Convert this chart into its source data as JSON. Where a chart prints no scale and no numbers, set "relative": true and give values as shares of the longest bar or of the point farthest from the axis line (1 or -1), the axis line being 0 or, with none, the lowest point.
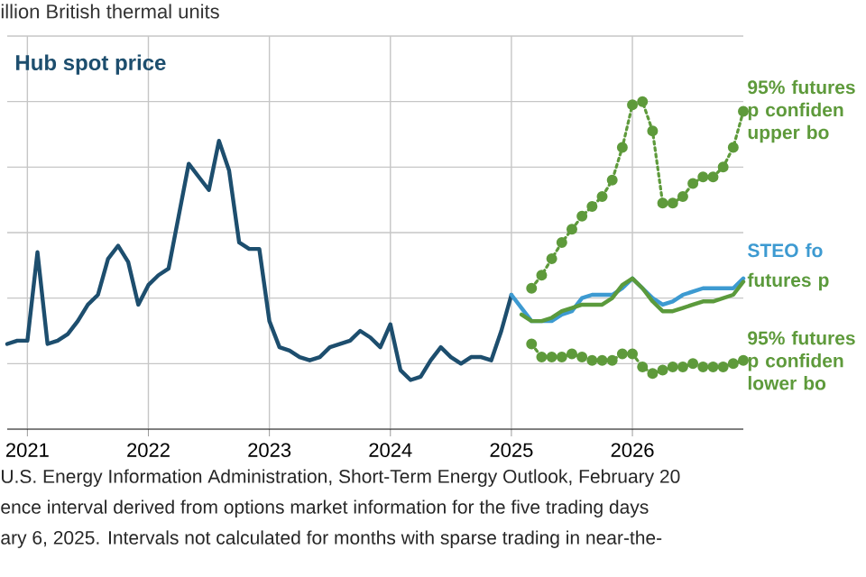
{
  "chart_data": {
    "type": "line",
    "ylabel": "illion British thermal units",
    "relative": true,
    "grid": true,
    "xlim": [
      "2020-11",
      "2026-12"
    ],
    "xticks": [
      {
        "value": "2021",
        "label": "2021"
      },
      {
        "value": "2022",
        "label": "2022"
      },
      {
        "value": "2023",
        "label": "2023"
      },
      {
        "value": "2024",
        "label": "2024"
      },
      {
        "value": "2025",
        "label": "2025"
      },
      {
        "value": "2026",
        "label": "2026"
      }
    ],
    "x": [
      "2020-11",
      "2020-12",
      "2021-01",
      "2021-02",
      "2021-03",
      "2021-04",
      "2021-05",
      "2021-06",
      "2021-07",
      "2021-08",
      "2021-09",
      "2021-10",
      "2021-11",
      "2021-12",
      "2022-01",
      "2022-02",
      "2022-03",
      "2022-04",
      "2022-05",
      "2022-06",
      "2022-07",
      "2022-08",
      "2022-09",
      "2022-10",
      "2022-11",
      "2022-12",
      "2023-01",
      "2023-02",
      "2023-03",
      "2023-04",
      "2023-05",
      "2023-06",
      "2023-07",
      "2023-08",
      "2023-09",
      "2023-10",
      "2023-11",
      "2023-12",
      "2024-01",
      "2024-02",
      "2024-03",
      "2024-04",
      "2024-05",
      "2024-06",
      "2024-07",
      "2024-08",
      "2024-09",
      "2024-10",
      "2024-11",
      "2024-12",
      "2025-01"
    ],
    "series": [
      {
        "name": "Hub spot price",
        "color": "#1d4e6e",
        "values": [
          0.26,
          0.27,
          0.27,
          0.54,
          0.26,
          0.27,
          0.29,
          0.33,
          0.38,
          0.41,
          0.52,
          0.56,
          0.51,
          0.38,
          0.44,
          0.47,
          0.49,
          0.65,
          0.81,
          0.77,
          0.73,
          0.88,
          0.79,
          0.57,
          0.55,
          0.55,
          0.33,
          0.25,
          0.24,
          0.22,
          0.21,
          0.22,
          0.25,
          0.26,
          0.27,
          0.3,
          0.28,
          0.25,
          0.32,
          0.18,
          0.15,
          0.16,
          0.21,
          0.25,
          0.22,
          0.2,
          0.22,
          0.22,
          0.21,
          0.3,
          0.41
        ]
      },
      {
        "name": "95% futures p confiden upper bo",
        "color": "#5e9a3b",
        "marker": "circle",
        "line_style": "dotted",
        "x": [
          "2025-03",
          "2025-04",
          "2025-05",
          "2025-06",
          "2025-07",
          "2025-08",
          "2025-09",
          "2025-10",
          "2025-11",
          "2025-12",
          "2026-01",
          "2026-02",
          "2026-03",
          "2026-04",
          "2026-05",
          "2026-06",
          "2026-07",
          "2026-08",
          "2026-09",
          "2026-10",
          "2026-11",
          "2026-12"
        ],
        "values": [
          0.43,
          0.47,
          0.52,
          0.57,
          0.61,
          0.65,
          0.68,
          0.71,
          0.76,
          0.86,
          0.99,
          1.0,
          0.91,
          0.69,
          0.69,
          0.71,
          0.75,
          0.77,
          0.77,
          0.8,
          0.86,
          0.97
        ]
      },
      {
        "name": "STEO fo",
        "color": "#3d9ad1",
        "x": [
          "2025-01",
          "2025-02",
          "2025-03",
          "2025-04",
          "2025-05",
          "2025-06",
          "2025-07",
          "2025-08",
          "2025-09",
          "2025-10",
          "2025-11",
          "2025-12",
          "2026-01",
          "2026-02",
          "2026-03",
          "2026-04",
          "2026-05",
          "2026-06",
          "2026-07",
          "2026-08",
          "2026-09",
          "2026-10",
          "2026-11",
          "2026-12"
        ],
        "values": [
          0.41,
          0.37,
          0.33,
          0.33,
          0.33,
          0.35,
          0.36,
          0.4,
          0.41,
          0.41,
          0.41,
          0.43,
          0.46,
          0.43,
          0.4,
          0.38,
          0.39,
          0.41,
          0.42,
          0.43,
          0.43,
          0.43,
          0.43,
          0.46
        ]
      },
      {
        "name": "futures p",
        "color": "#5b9a3c",
        "x": [
          "2025-02",
          "2025-03",
          "2025-04",
          "2025-05",
          "2025-06",
          "2025-07",
          "2025-08",
          "2025-09",
          "2025-10",
          "2025-11",
          "2025-12",
          "2026-01",
          "2026-02",
          "2026-03",
          "2026-04",
          "2026-05",
          "2026-06",
          "2026-07",
          "2026-08",
          "2026-09",
          "2026-10",
          "2026-11",
          "2026-12"
        ],
        "values": [
          0.35,
          0.33,
          0.33,
          0.34,
          0.36,
          0.37,
          0.38,
          0.38,
          0.38,
          0.4,
          0.44,
          0.46,
          0.43,
          0.39,
          0.36,
          0.36,
          0.37,
          0.38,
          0.39,
          0.39,
          0.4,
          0.41,
          0.45
        ]
      },
      {
        "name": "95% futures p confiden lower bo",
        "color": "#5e9a3b",
        "marker": "circle",
        "line_style": "dotted",
        "x": [
          "2025-03",
          "2025-04",
          "2025-05",
          "2025-06",
          "2025-07",
          "2025-08",
          "2025-09",
          "2025-10",
          "2025-11",
          "2025-12",
          "2026-01",
          "2026-02",
          "2026-03",
          "2026-04",
          "2026-05",
          "2026-06",
          "2026-07",
          "2026-08",
          "2026-09",
          "2026-10",
          "2026-11",
          "2026-12"
        ],
        "values": [
          0.26,
          0.22,
          0.22,
          0.22,
          0.23,
          0.22,
          0.21,
          0.21,
          0.21,
          0.23,
          0.23,
          0.19,
          0.17,
          0.18,
          0.19,
          0.19,
          0.2,
          0.19,
          0.19,
          0.19,
          0.2,
          0.21
        ]
      }
    ],
    "annotations": [
      "U.S. Energy Information Administration, Short-Term Energy Outlook, February 20",
      "ence interval derived from options market information for the five trading days",
      "ary 6, 2025. Intervals not calculated for months with sparse trading in near-the-"
    ]
  }
}
